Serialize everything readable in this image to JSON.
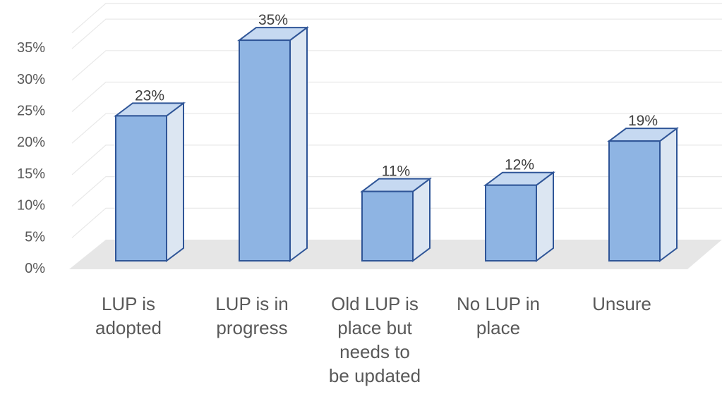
{
  "chart_data": {
    "type": "bar",
    "style": "3d-column",
    "categories": [
      [
        "LUP is",
        "adopted"
      ],
      [
        "LUP is in",
        "progress"
      ],
      [
        "Old LUP is",
        "place but",
        "needs to",
        "be updated"
      ],
      [
        "No LUP in",
        "place"
      ],
      [
        "Unsure"
      ]
    ],
    "values": [
      23,
      35,
      11,
      12,
      19
    ],
    "data_labels": [
      "23%",
      "35%",
      "11%",
      "12%",
      "19%"
    ],
    "yticks": [
      "0%",
      "5%",
      "10%",
      "15%",
      "20%",
      "25%",
      "30%",
      "35%"
    ],
    "ylim": [
      0,
      35
    ],
    "grid": true,
    "legend": "none",
    "colors": {
      "bar_front": "#8EB4E3",
      "bar_side": "#DCE6F2",
      "bar_top": "#C6D9F1",
      "bar_edge": "#2F5597",
      "floor": "#E6E6E6",
      "gridline": "#E8E8E8"
    }
  }
}
